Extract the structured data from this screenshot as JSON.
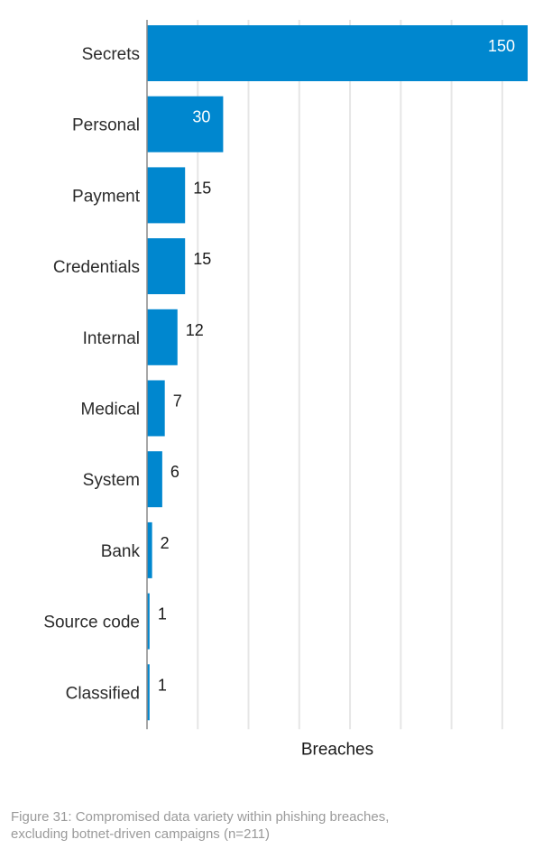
{
  "chart_data": {
    "type": "bar",
    "orientation": "horizontal",
    "categories": [
      "Secrets",
      "Personal",
      "Payment",
      "Credentials",
      "Internal",
      "Medical",
      "System",
      "Bank",
      "Source code",
      "Classified"
    ],
    "values": [
      150,
      30,
      15,
      15,
      12,
      7,
      6,
      2,
      1,
      1
    ],
    "xlabel": "Breaches",
    "xlim": [
      0,
      150
    ],
    "grid": true,
    "bar_color": "#0087cf"
  },
  "caption": {
    "line1": "Figure 31: Compromised data variety within phishing breaches,",
    "line2": "excluding botnet-driven campaigns (n=211)"
  }
}
